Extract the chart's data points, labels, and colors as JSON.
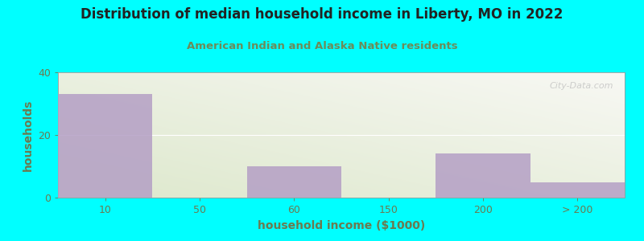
{
  "title": "Distribution of median household income in Liberty, MO in 2022",
  "subtitle": "American Indian and Alaska Native residents",
  "xlabel": "household income ($1000)",
  "ylabel": "households",
  "bar_heights": [
    33,
    0,
    10,
    0,
    14,
    5
  ],
  "bar_labels": [
    "10",
    "50",
    "60",
    "150",
    "200",
    "> 200"
  ],
  "bar_color": "#b49fc5",
  "ylim": [
    0,
    40
  ],
  "yticks": [
    0,
    20,
    40
  ],
  "background_color": "#00ffff",
  "grad_color_green": "#dde8cc",
  "grad_color_white": "#f8f8f4",
  "title_color": "#222222",
  "subtitle_color": "#6b8c5a",
  "axis_label_color": "#6b7a50",
  "tick_color": "#6b7a50",
  "watermark": "City-Data.com",
  "grid_color": "#ffffff"
}
